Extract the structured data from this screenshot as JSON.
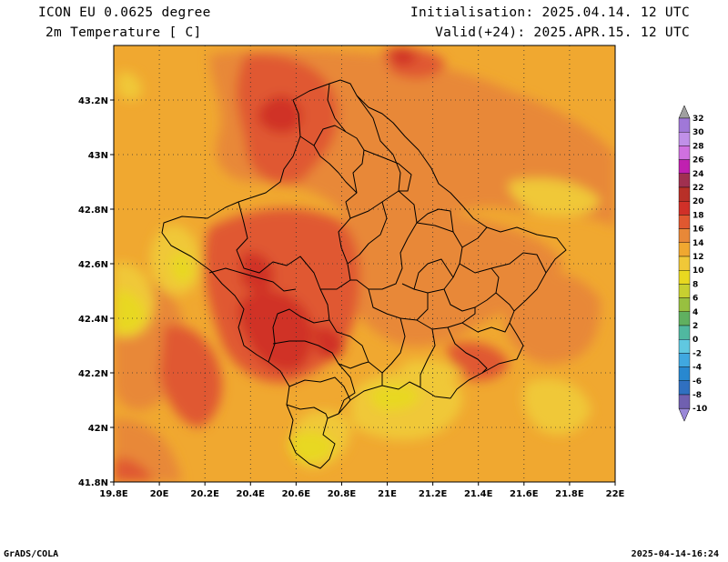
{
  "header": {
    "model": "ICON EU 0.0625 degree",
    "variable": "2m Temperature [ C]",
    "init": "Initialisation: 2025.04.14. 12 UTC",
    "valid": "Valid(+24): 2025.APR.15. 12 UTC"
  },
  "footer": {
    "left": "GrADS/COLA",
    "right": "2025-04-14-16:24"
  },
  "map": {
    "lon_ticks": [
      "19.8E",
      "20E",
      "20.2E",
      "20.4E",
      "20.6E",
      "20.8E",
      "21E",
      "21.2E",
      "21.4E",
      "21.6E",
      "21.8E",
      "22E"
    ],
    "lat_ticks": [
      "41.8N",
      "42N",
      "42.2N",
      "42.4N",
      "42.6N",
      "42.8N",
      "43N",
      "43.2N"
    ],
    "lon_range": [
      19.8,
      22.0
    ],
    "lat_range": [
      41.8,
      43.4
    ],
    "grid": "dotted",
    "region": "Kosovo (municipal boundaries)"
  },
  "colorbar": {
    "labels": [
      "32",
      "30",
      "28",
      "26",
      "24",
      "22",
      "20",
      "18",
      "16",
      "14",
      "12",
      "10",
      "8",
      "6",
      "4",
      "2",
      "0",
      "-2",
      "-4",
      "-6",
      "-8",
      "-10"
    ],
    "colors": [
      "#a078d8",
      "#c090e8",
      "#d070e0",
      "#c020b0",
      "#a03050",
      "#b83028",
      "#d03028",
      "#e05830",
      "#e88838",
      "#f0a830",
      "#f0c838",
      "#e8d820",
      "#c8d030",
      "#98c040",
      "#60b060",
      "#50b8a0",
      "#60c8e0",
      "#40a8e0",
      "#2888d0",
      "#3070c0",
      "#7060b0"
    ]
  },
  "legend_colors": {
    "t10": "#e8d820",
    "t12": "#f0c838",
    "t14": "#f0a830",
    "t16": "#e88838",
    "t18": "#e05830",
    "t20": "#d03028"
  }
}
